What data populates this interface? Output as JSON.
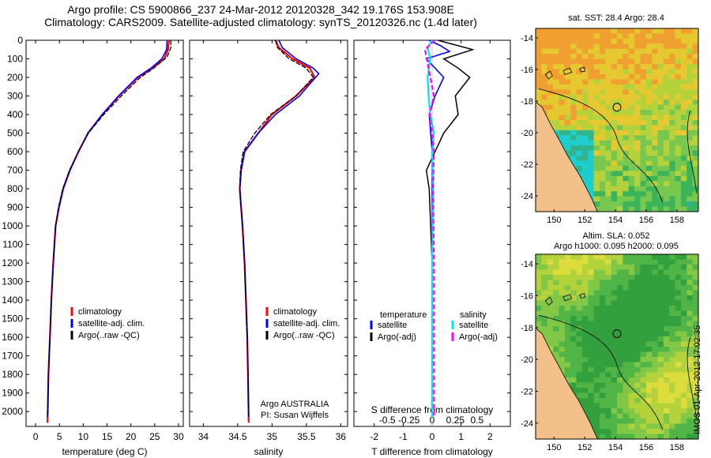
{
  "header": {
    "line1": "Argo profile: CS 5900866_237 24-Mar-2012 20120328_342 19.176S 153.908E",
    "line2": "Climatology: CARS2009. Satellite-adjusted climatology: synTS_20120326.nc (1.4d later)"
  },
  "colors": {
    "climatology": "#ff0000",
    "satellite": "#0000ff",
    "argo": "#000000",
    "sal_sat": "#00e5e5",
    "sal_argo": "#ff00ff",
    "land": "#f4c089"
  },
  "chart_data": [
    {
      "type": "line",
      "panel": "temperature",
      "xlabel": "temperature (deg C)",
      "xlim": [
        -2,
        31
      ],
      "xticks": [
        "0",
        "5",
        "10",
        "15",
        "20",
        "25",
        "30"
      ],
      "ylim": [
        0,
        2080
      ],
      "yticks": [
        "0",
        "100",
        "200",
        "300",
        "400",
        "500",
        "600",
        "700",
        "800",
        "900",
        "1000",
        "1100",
        "1200",
        "1300",
        "1400",
        "1500",
        "1600",
        "1700",
        "1800",
        "1900",
        "2000"
      ],
      "series": [
        {
          "name": "climatology",
          "x": [
            28.0,
            27.8,
            27.0,
            24.5,
            21.5,
            17.5,
            14.0,
            11.0,
            9.0,
            7.2,
            5.8,
            4.9,
            4.2,
            3.7,
            3.3,
            3.0,
            2.7,
            2.5
          ],
          "y": [
            0,
            50,
            100,
            150,
            200,
            300,
            400,
            500,
            600,
            700,
            800,
            900,
            1000,
            1200,
            1400,
            1600,
            1800,
            2060
          ]
        },
        {
          "name": "satellite-adj. clim.",
          "x": [
            27.6,
            27.5,
            26.5,
            24.2,
            21.3,
            17.4,
            14.0,
            11.0,
            9.0,
            7.2,
            5.8,
            4.9,
            4.2,
            3.7,
            3.3,
            3.0,
            2.7,
            2.5
          ],
          "y": [
            0,
            50,
            100,
            150,
            200,
            300,
            400,
            500,
            600,
            700,
            800,
            900,
            1000,
            1200,
            1400,
            1600,
            1800,
            2030
          ]
        },
        {
          "name": "Argo(..raw -QC)",
          "x": [
            28.4,
            28.4,
            27.6,
            24.8,
            22.0,
            18.0,
            14.3,
            11.1,
            9.0,
            7.1,
            5.7,
            4.8,
            4.2,
            3.7,
            3.3,
            3.0,
            2.7,
            2.6
          ],
          "y": [
            0,
            40,
            90,
            150,
            200,
            300,
            400,
            500,
            600,
            700,
            800,
            900,
            1000,
            1200,
            1400,
            1600,
            1800,
            2020
          ]
        }
      ],
      "legend": [
        "climatology",
        "satellite-adj. clim.",
        "Argo(..raw -QC)"
      ]
    },
    {
      "type": "line",
      "panel": "salinity",
      "xlabel": "salinity",
      "xlim": [
        33.8,
        36.1
      ],
      "xticks": [
        "34",
        "34.5",
        "35",
        "35.5",
        "36"
      ],
      "ylim": [
        0,
        2080
      ],
      "series": [
        {
          "name": "climatology",
          "x": [
            35.05,
            35.1,
            35.3,
            35.55,
            35.62,
            35.35,
            35.0,
            34.8,
            34.6,
            34.55,
            34.53,
            34.55,
            34.57,
            34.6,
            34.62,
            34.64,
            34.65,
            34.66
          ],
          "y": [
            0,
            40,
            100,
            150,
            200,
            300,
            400,
            500,
            600,
            700,
            800,
            900,
            1000,
            1200,
            1400,
            1600,
            1800,
            2060
          ]
        },
        {
          "name": "satellite-adj. clim.",
          "x": [
            35.1,
            35.15,
            35.35,
            35.6,
            35.68,
            35.4,
            35.05,
            34.8,
            34.6,
            34.55,
            34.53,
            34.55,
            34.57,
            34.6,
            34.62,
            34.64,
            34.65,
            34.66
          ],
          "y": [
            0,
            40,
            100,
            150,
            180,
            300,
            400,
            500,
            600,
            700,
            800,
            900,
            1000,
            1200,
            1400,
            1600,
            1800,
            2030
          ]
        },
        {
          "name": "Argo(..raw -QC)",
          "x": [
            35.05,
            35.08,
            35.25,
            35.5,
            35.6,
            35.35,
            34.98,
            34.75,
            34.58,
            34.54,
            34.53,
            34.55,
            34.57,
            34.6,
            34.62,
            34.64,
            34.65,
            34.66
          ],
          "y": [
            0,
            40,
            100,
            150,
            200,
            300,
            400,
            500,
            600,
            700,
            800,
            900,
            1000,
            1200,
            1400,
            1600,
            1800,
            2020
          ]
        }
      ],
      "legend": [
        "climatology",
        "satellite-adj. clim.",
        "Argo(..raw -QC)"
      ],
      "annotation": [
        "Argo AUSTRALIA",
        "PI: Susan Wijffels"
      ]
    },
    {
      "type": "line",
      "panel": "difference",
      "xlabel": "T difference from climatology",
      "xlabel_top": "S difference from climatology",
      "xlim": [
        -2.7,
        2.7
      ],
      "xticks_T": [
        "-2",
        "-1",
        "0",
        "1",
        "2"
      ],
      "xticks_S": [
        "-0.5",
        "-0.25",
        "0",
        "0.25",
        "0.5"
      ],
      "ylim": [
        0,
        2080
      ],
      "series": [
        {
          "name": "temperature satellite",
          "x": [
            -0.1,
            0.3,
            0.6,
            -0.2,
            0.4,
            0.1,
            -0.1,
            0.0,
            0.0,
            0.0,
            0.0,
            0.0
          ],
          "y": [
            0,
            30,
            60,
            100,
            200,
            300,
            400,
            600,
            800,
            1200,
            1600,
            2030
          ]
        },
        {
          "name": "temperature Argo(-adj)",
          "x": [
            0.2,
            1.4,
            0.4,
            0.9,
            1.3,
            0.8,
            0.9,
            0.4,
            -0.2,
            -0.1,
            0.0,
            0.0
          ],
          "y": [
            0,
            50,
            100,
            150,
            200,
            300,
            400,
            500,
            700,
            800,
            1200,
            2020
          ]
        },
        {
          "name": "salinity satellite",
          "x": [
            0.0,
            -0.05,
            -0.02,
            -0.05,
            -0.04,
            -0.02,
            0.02,
            0.0,
            0.01,
            0.0,
            0.0,
            0.0
          ],
          "y": [
            0,
            40,
            100,
            200,
            300,
            400,
            500,
            600,
            800,
            1200,
            1600,
            2030
          ]
        },
        {
          "name": "salinity Argo(-adj)",
          "x": [
            0.03,
            -0.08,
            -0.06,
            -0.02,
            0.02,
            -0.03,
            0.0,
            0.02,
            0.01,
            0.02,
            0.02,
            0.02
          ],
          "y": [
            0,
            50,
            100,
            200,
            300,
            400,
            500,
            600,
            800,
            1200,
            1600,
            2030
          ]
        }
      ],
      "legend_headers": [
        "temperature",
        "salinity"
      ],
      "legend": [
        "satellite",
        "Argo(-adj)",
        "satellite",
        "Argo(-adj)"
      ]
    }
  ],
  "maps": {
    "top": {
      "title": "sat. SST: 28.4 Argo: 28.4",
      "yticks": [
        "-14",
        "-16",
        "-18",
        "-20",
        "-22",
        "-24"
      ],
      "xticks": [
        "150",
        "152",
        "154",
        "156",
        "158"
      ]
    },
    "bottom": {
      "title_line1": "Altim. SLA: 0.052",
      "title_line2": "Argo h1000: 0.095 h2000: 0.095",
      "yticks": [
        "-14",
        "-16",
        "-18",
        "-20",
        "-22",
        "-24"
      ],
      "xticks": [
        "150",
        "152",
        "154",
        "156",
        "158"
      ]
    }
  },
  "sidebar_text": "IMOS 01-Apr-2012 17:02:35"
}
